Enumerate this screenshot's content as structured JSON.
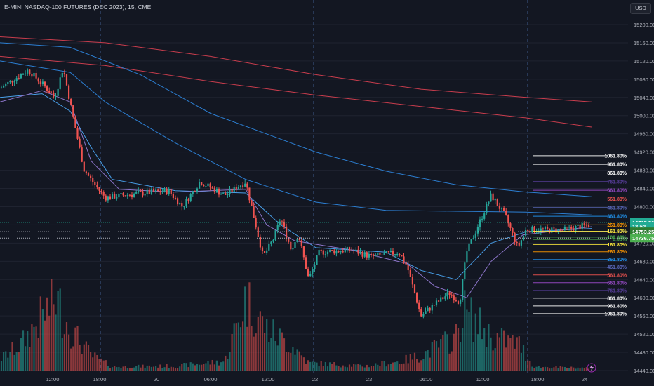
{
  "header": {
    "title": "E-MINI NASDAQ-100 FUTURES (DEC 2023), 15, CME",
    "currency_button": "USD"
  },
  "colors": {
    "background": "#131722",
    "grid": "#1f2330",
    "up": "#26a69a",
    "down": "#ef5350",
    "ma_red": "#c93d4d",
    "ma_blue_dark": "#2c7ed1",
    "ma_blue_light": "#49a0ea",
    "ma_purple": "#8c75c9",
    "session_line": "#3d5a8a",
    "price_tag_green": "#22ab94"
  },
  "chart_data": {
    "type": "candlestick",
    "title": "E-MINI NASDAQ-100 FUTURES (DEC 2023), 15, CME",
    "timeframe": "15",
    "x_labels": [
      "12:00",
      "18:00",
      "20",
      "06:00",
      "12:00",
      "22",
      "23",
      "06:00",
      "12:00",
      "18:00",
      "24"
    ],
    "y_axis": {
      "min": 14440,
      "max": 15200,
      "step": 40,
      "ticks": [
        "15200.00",
        "15160.00",
        "15120.00",
        "15080.00",
        "15040.00",
        "15000.00",
        "14960.00",
        "14920.00",
        "14880.00",
        "14840.00",
        "14800.00",
        "14760.00",
        "14720.00",
        "14680.00",
        "14640.00",
        "14600.00",
        "14560.00",
        "14520.00",
        "14480.00",
        "14440.00"
      ]
    },
    "price_path": [
      {
        "x": 0,
        "p": 15060
      },
      {
        "x": 40,
        "p": 15100
      },
      {
        "x": 60,
        "p": 15070
      },
      {
        "x": 78,
        "p": 15040
      },
      {
        "x": 90,
        "p": 15105
      },
      {
        "x": 105,
        "p": 14990
      },
      {
        "x": 120,
        "p": 14880
      },
      {
        "x": 135,
        "p": 14848
      },
      {
        "x": 150,
        "p": 14820
      },
      {
        "x": 190,
        "p": 14828
      },
      {
        "x": 240,
        "p": 14835
      },
      {
        "x": 260,
        "p": 14800
      },
      {
        "x": 285,
        "p": 14855
      },
      {
        "x": 320,
        "p": 14825
      },
      {
        "x": 350,
        "p": 14855
      },
      {
        "x": 375,
        "p": 14690
      },
      {
        "x": 390,
        "p": 14730
      },
      {
        "x": 400,
        "p": 14775
      },
      {
        "x": 415,
        "p": 14705
      },
      {
        "x": 425,
        "p": 14740
      },
      {
        "x": 440,
        "p": 14640
      },
      {
        "x": 455,
        "p": 14700
      },
      {
        "x": 500,
        "p": 14705
      },
      {
        "x": 530,
        "p": 14690
      },
      {
        "x": 568,
        "p": 14700
      },
      {
        "x": 580,
        "p": 14670
      },
      {
        "x": 600,
        "p": 14560
      },
      {
        "x": 615,
        "p": 14580
      },
      {
        "x": 640,
        "p": 14610
      },
      {
        "x": 655,
        "p": 14590
      },
      {
        "x": 665,
        "p": 14700
      },
      {
        "x": 700,
        "p": 14825
      },
      {
        "x": 720,
        "p": 14780
      },
      {
        "x": 738,
        "p": 14710
      },
      {
        "x": 750,
        "p": 14750
      },
      {
        "x": 800,
        "p": 14748
      },
      {
        "x": 840,
        "p": 14760
      }
    ],
    "moving_averages": [
      {
        "color": "#c93d4d",
        "points": [
          [
            0,
            15173
          ],
          [
            150,
            15160
          ],
          [
            300,
            15130
          ],
          [
            450,
            15090
          ],
          [
            600,
            15058
          ],
          [
            750,
            15040
          ],
          [
            843,
            15030
          ]
        ]
      },
      {
        "color": "#c93d4d",
        "points": [
          [
            0,
            15130
          ],
          [
            150,
            15110
          ],
          [
            300,
            15075
          ],
          [
            450,
            15045
          ],
          [
            600,
            15020
          ],
          [
            750,
            14995
          ],
          [
            843,
            14975
          ]
        ]
      },
      {
        "color": "#2c7ed1",
        "points": [
          [
            0,
            15160
          ],
          [
            100,
            15150
          ],
          [
            200,
            15090
          ],
          [
            300,
            15005
          ],
          [
            450,
            14920
          ],
          [
            550,
            14878
          ],
          [
            650,
            14848
          ],
          [
            750,
            14832
          ],
          [
            843,
            14822
          ]
        ]
      },
      {
        "color": "#2c7ed1",
        "points": [
          [
            0,
            15120
          ],
          [
            100,
            15095
          ],
          [
            150,
            15030
          ],
          [
            250,
            14940
          ],
          [
            350,
            14860
          ],
          [
            450,
            14810
          ],
          [
            550,
            14792
          ],
          [
            650,
            14790
          ],
          [
            750,
            14788
          ],
          [
            843,
            14782
          ]
        ]
      },
      {
        "color": "#49a0ea",
        "points": [
          [
            0,
            15040
          ],
          [
            60,
            15048
          ],
          [
            100,
            15010
          ],
          [
            130,
            14930
          ],
          [
            160,
            14860
          ],
          [
            250,
            14835
          ],
          [
            350,
            14830
          ],
          [
            400,
            14760
          ],
          [
            450,
            14710
          ],
          [
            550,
            14700
          ],
          [
            600,
            14660
          ],
          [
            650,
            14640
          ],
          [
            700,
            14720
          ],
          [
            750,
            14745
          ],
          [
            843,
            14752
          ]
        ]
      },
      {
        "color": "#8c75c9",
        "points": [
          [
            0,
            15030
          ],
          [
            60,
            15055
          ],
          [
            100,
            15030
          ],
          [
            130,
            14900
          ],
          [
            170,
            14838
          ],
          [
            250,
            14832
          ],
          [
            350,
            14838
          ],
          [
            380,
            14760
          ],
          [
            420,
            14725
          ],
          [
            500,
            14705
          ],
          [
            580,
            14675
          ],
          [
            620,
            14625
          ],
          [
            665,
            14600
          ],
          [
            700,
            14680
          ],
          [
            745,
            14738
          ],
          [
            843,
            14756
          ]
        ]
      }
    ],
    "fibonacci_levels": {
      "upper": [
        {
          "label": "1061.80%",
          "price": 14912,
          "color": "#ffffff"
        },
        {
          "label": "961.80%",
          "price": 14893,
          "color": "#ffffff"
        },
        {
          "label": "861.80%",
          "price": 14874,
          "color": "#ffffff"
        },
        {
          "label": "761.80%",
          "price": 14855,
          "color": "#5b3fa0"
        },
        {
          "label": "661.80%",
          "price": 14836,
          "color": "#9c4dcc"
        },
        {
          "label": "561.80%",
          "price": 14817,
          "color": "#ef5350"
        },
        {
          "label": "461.80%",
          "price": 14798,
          "color": "#5c6bc0"
        },
        {
          "label": "361.80%",
          "price": 14779,
          "color": "#2196f3"
        },
        {
          "label": "261.80%",
          "price": 14760,
          "color": "#ff9800"
        },
        {
          "label": "161.80%",
          "price": 14746,
          "color": "#ffeb3b"
        }
      ],
      "middle": [
        {
          "label": "100.00%",
          "price": 14733,
          "color": "#4caf50"
        },
        {
          "label": "0.00%",
          "price": 14728,
          "color": "#4caf50"
        }
      ],
      "lower": [
        {
          "label": "161.80%",
          "price": 14717,
          "color": "#ffeb3b"
        },
        {
          "label": "261.80%",
          "price": 14701,
          "color": "#ff9800"
        },
        {
          "label": "361.80%",
          "price": 14684,
          "color": "#2196f3"
        },
        {
          "label": "461.80%",
          "price": 14667,
          "color": "#5c6bc0"
        },
        {
          "label": "561.80%",
          "price": 14650,
          "color": "#ef5350"
        },
        {
          "label": "661.80%",
          "price": 14633,
          "color": "#9c4dcc"
        },
        {
          "label": "761.80%",
          "price": 14616,
          "color": "#5b3fa0"
        },
        {
          "label": "861.80%",
          "price": 14599,
          "color": "#ffffff"
        },
        {
          "label": "961.80%",
          "price": 14582,
          "color": "#ffffff"
        },
        {
          "label": "1061.80%",
          "price": 14565,
          "color": "#ffffff"
        }
      ]
    },
    "price_tags": [
      {
        "label": "14765.50",
        "price": 14765.5,
        "color": "#22ab94"
      },
      {
        "label": "13:52",
        "price": 14757,
        "color": "#22ab94"
      },
      {
        "label": "14753.25",
        "price": 14745,
        "color": "#2e7d32"
      },
      {
        "label": "14736.75",
        "price": 14731,
        "color": "#4caf50"
      }
    ],
    "volume_profile": [
      {
        "x": 0,
        "v": 0.15
      },
      {
        "x": 30,
        "v": 0.35
      },
      {
        "x": 50,
        "v": 0.6
      },
      {
        "x": 80,
        "v": 0.95
      },
      {
        "x": 100,
        "v": 0.55
      },
      {
        "x": 130,
        "v": 0.2
      },
      {
        "x": 160,
        "v": 0.05
      },
      {
        "x": 250,
        "v": 0.06
      },
      {
        "x": 320,
        "v": 0.12
      },
      {
        "x": 350,
        "v": 0.95
      },
      {
        "x": 380,
        "v": 0.55
      },
      {
        "x": 420,
        "v": 0.3
      },
      {
        "x": 440,
        "v": 0.1
      },
      {
        "x": 520,
        "v": 0.06
      },
      {
        "x": 570,
        "v": 0.12
      },
      {
        "x": 600,
        "v": 0.2
      },
      {
        "x": 650,
        "v": 0.45
      },
      {
        "x": 660,
        "v": 0.8
      },
      {
        "x": 700,
        "v": 0.45
      },
      {
        "x": 740,
        "v": 0.35
      },
      {
        "x": 760,
        "v": 0.05
      },
      {
        "x": 843,
        "v": 0.03
      }
    ]
  }
}
